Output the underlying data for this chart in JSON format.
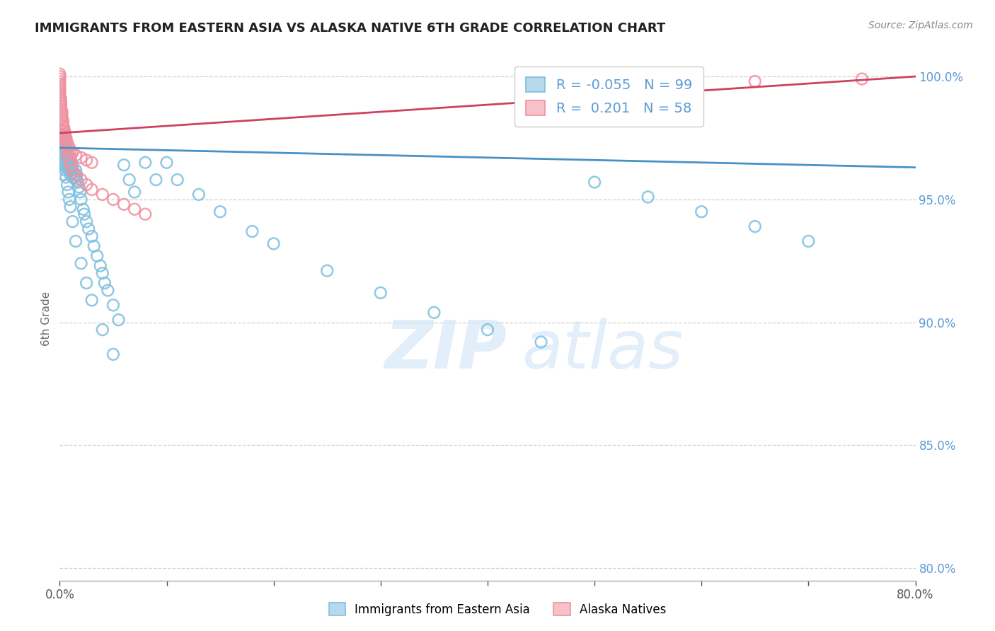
{
  "title": "IMMIGRANTS FROM EASTERN ASIA VS ALASKA NATIVE 6TH GRADE CORRELATION CHART",
  "source": "Source: ZipAtlas.com",
  "ylabel": "6th Grade",
  "blue_R": -0.055,
  "blue_N": 99,
  "pink_R": 0.201,
  "pink_N": 58,
  "blue_color": "#7fbfdf",
  "pink_color": "#f090a0",
  "trendline_blue": "#4a90c4",
  "trendline_pink": "#d04060",
  "legend_label_blue": "Immigrants from Eastern Asia",
  "legend_label_pink": "Alaska Natives",
  "xlim": [
    0.0,
    0.8
  ],
  "ylim": [
    0.795,
    1.008
  ],
  "right_ytick_positions": [
    1.0,
    0.95,
    0.9,
    0.85,
    0.8
  ],
  "right_ytick_labels": [
    "100.0%",
    "95.0%",
    "90.0%",
    "85.0%",
    "80.0%"
  ],
  "grid_color": "#d0d0d0",
  "background_color": "#ffffff",
  "title_color": "#222222",
  "right_axis_color": "#5b9bd5",
  "blue_scatter_x": [
    0.001,
    0.001,
    0.001,
    0.001,
    0.002,
    0.002,
    0.002,
    0.002,
    0.003,
    0.003,
    0.003,
    0.004,
    0.004,
    0.004,
    0.005,
    0.005,
    0.005,
    0.006,
    0.006,
    0.006,
    0.007,
    0.007,
    0.008,
    0.008,
    0.009,
    0.009,
    0.01,
    0.01,
    0.01,
    0.011,
    0.011,
    0.012,
    0.012,
    0.013,
    0.014,
    0.015,
    0.015,
    0.016,
    0.017,
    0.018,
    0.019,
    0.02,
    0.022,
    0.023,
    0.025,
    0.027,
    0.03,
    0.032,
    0.035,
    0.038,
    0.04,
    0.042,
    0.045,
    0.05,
    0.055,
    0.06,
    0.065,
    0.07,
    0.08,
    0.09,
    0.1,
    0.11,
    0.13,
    0.15,
    0.18,
    0.2,
    0.25,
    0.3,
    0.35,
    0.4,
    0.45,
    0.5,
    0.55,
    0.6,
    0.65,
    0.7,
    0.0,
    0.0,
    0.0,
    0.001,
    0.001,
    0.002,
    0.002,
    0.003,
    0.004,
    0.004,
    0.005,
    0.006,
    0.007,
    0.008,
    0.009,
    0.01,
    0.012,
    0.015,
    0.02,
    0.025,
    0.03,
    0.04,
    0.05
  ],
  "blue_scatter_y": [
    0.974,
    0.972,
    0.97,
    0.968,
    0.976,
    0.972,
    0.969,
    0.966,
    0.974,
    0.97,
    0.966,
    0.971,
    0.968,
    0.964,
    0.972,
    0.968,
    0.965,
    0.97,
    0.966,
    0.963,
    0.968,
    0.964,
    0.967,
    0.963,
    0.966,
    0.962,
    0.967,
    0.963,
    0.96,
    0.965,
    0.961,
    0.963,
    0.959,
    0.961,
    0.959,
    0.962,
    0.958,
    0.96,
    0.957,
    0.955,
    0.953,
    0.95,
    0.946,
    0.944,
    0.941,
    0.938,
    0.935,
    0.931,
    0.927,
    0.923,
    0.92,
    0.916,
    0.913,
    0.907,
    0.901,
    0.964,
    0.958,
    0.953,
    0.965,
    0.958,
    0.965,
    0.958,
    0.952,
    0.945,
    0.937,
    0.932,
    0.921,
    0.912,
    0.904,
    0.897,
    0.892,
    0.957,
    0.951,
    0.945,
    0.939,
    0.933,
    0.975,
    0.971,
    0.967,
    0.973,
    0.969,
    0.97,
    0.966,
    0.968,
    0.964,
    0.96,
    0.962,
    0.959,
    0.956,
    0.953,
    0.95,
    0.947,
    0.941,
    0.933,
    0.924,
    0.916,
    0.909,
    0.897,
    0.887
  ],
  "pink_scatter_x": [
    0.0,
    0.0,
    0.0,
    0.0,
    0.0,
    0.0,
    0.0,
    0.0,
    0.0,
    0.0,
    0.001,
    0.001,
    0.001,
    0.001,
    0.001,
    0.002,
    0.002,
    0.002,
    0.002,
    0.003,
    0.003,
    0.003,
    0.004,
    0.004,
    0.005,
    0.005,
    0.006,
    0.006,
    0.007,
    0.008,
    0.009,
    0.01,
    0.012,
    0.015,
    0.02,
    0.025,
    0.03,
    0.003,
    0.004,
    0.005,
    0.006,
    0.007,
    0.008,
    0.009,
    0.01,
    0.012,
    0.015,
    0.02,
    0.025,
    0.03,
    0.04,
    0.05,
    0.06,
    0.07,
    0.08,
    0.55,
    0.65,
    0.75
  ],
  "pink_scatter_y": [
    1.001,
    1.0,
    0.999,
    0.998,
    0.997,
    0.996,
    0.995,
    0.994,
    0.993,
    0.992,
    0.991,
    0.99,
    0.989,
    0.988,
    0.987,
    0.986,
    0.985,
    0.984,
    0.983,
    0.982,
    0.981,
    0.98,
    0.979,
    0.978,
    0.977,
    0.976,
    0.975,
    0.974,
    0.973,
    0.972,
    0.971,
    0.97,
    0.969,
    0.968,
    0.967,
    0.966,
    0.965,
    0.978,
    0.976,
    0.974,
    0.972,
    0.97,
    0.968,
    0.966,
    0.964,
    0.962,
    0.96,
    0.958,
    0.956,
    0.954,
    0.952,
    0.95,
    0.948,
    0.946,
    0.944,
    0.997,
    0.998,
    0.999
  ],
  "blue_trend_x": [
    0.0,
    0.8
  ],
  "blue_trend_y": [
    0.971,
    0.963
  ],
  "pink_trend_x": [
    0.0,
    0.8
  ],
  "pink_trend_y": [
    0.977,
    1.0
  ]
}
